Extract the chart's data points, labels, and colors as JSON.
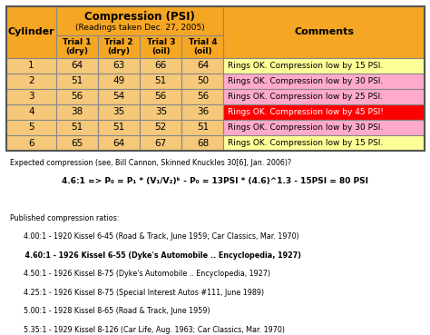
{
  "title1": "Compression (PSI)",
  "title2": "(Readings taken Dec. 27, 2005)",
  "col_headers": [
    "Cylinder",
    "Trial 1\n(dry)",
    "Trial 2\n(dry)",
    "Trial 3\n(oil)",
    "Trial 4\n(oil)",
    "Comments"
  ],
  "rows": [
    [
      1,
      64,
      63,
      66,
      64,
      "Rings OK. Compression low by 15 PSI."
    ],
    [
      2,
      51,
      49,
      51,
      50,
      "Rings OK. Compression low by 30 PSI."
    ],
    [
      3,
      56,
      54,
      56,
      56,
      "Rings OK. Compression low by 25 PSI."
    ],
    [
      4,
      38,
      35,
      35,
      36,
      "Rings OK. Compression low by 45 PSI!"
    ],
    [
      5,
      51,
      51,
      52,
      51,
      "Rings OK. Compression low by 30 PSI."
    ],
    [
      6,
      65,
      64,
      67,
      68,
      "Rings OK. Compression low by 15 PSI."
    ]
  ],
  "row_comment_colors": [
    "#ffff99",
    "#ffaacc",
    "#ffaacc",
    "#ff0000",
    "#ffaacc",
    "#ffff99"
  ],
  "header_bg": "#f5a623",
  "data_bg": "#f5c87a",
  "table_border": "#888888",
  "text_below": [
    "Expected compression (see, Bill Cannon, Skinned Knuckles 30[6], Jan. 2006)?",
    "4.6:1 => P₀ = P₁ * (V₁/V₂)ᵏ - P₀ = 13PSI * (4.6)^1.3 - 15PSI = 80 PSI",
    "",
    "Published compression ratios:",
    "      4.00:1 - 1920 Kissel 6-45 (Road & Track, June 1959; Car Classics, Mar. 1970)",
    "      4.60:1 - 1926 Kissel 6-55 (Dyke's Automobile .. Encyclopedia, 1927)",
    "      4.50:1 - 1926 Kissel 8-75 (Dyke's Automobile .. Encyclopedia, 1927)",
    "      4.25:1 - 1926 Kissel 8-75 (Special Interest Autos #111, June 1989)",
    "      5.00:1 - 1928 Kissel 8-65 (Road & Track, June 1959)",
    "      5.35:1 - 1929 Kissel 8-126 (Car Life, Aug. 1963; Car Classics, Mar. 1970)"
  ],
  "bold_line_index": 5,
  "underline_word": "Skinned Knuckles"
}
